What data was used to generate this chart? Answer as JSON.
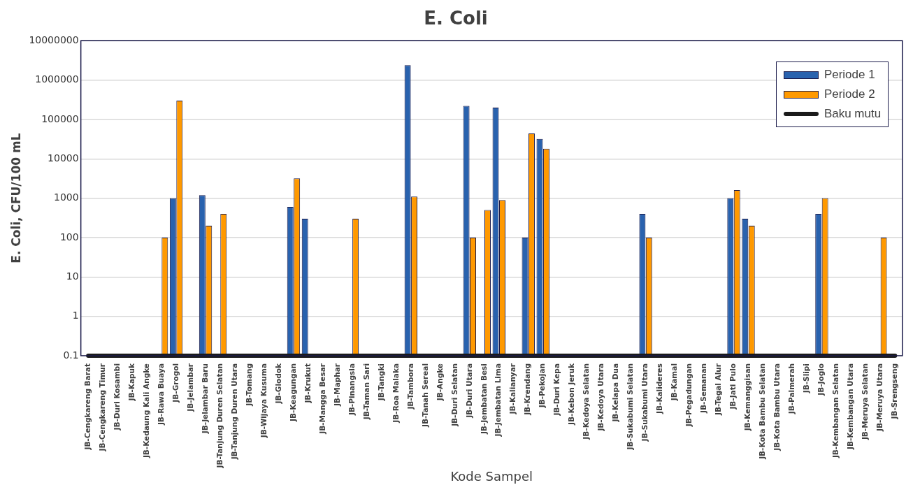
{
  "chart_data": {
    "type": "bar",
    "title": "E. Coli",
    "xlabel": "Kode Sampel",
    "ylabel": "E. Coli, CFU/100 mL",
    "categories": [
      "JB-Cengkareng Barat",
      "JB-Cengkareng Timur",
      "JB-Duri Kosambi",
      "JB-Kapuk",
      "JB-Kedaung Kali Angke",
      "JB-Rawa Buaya",
      "JB-Grogol",
      "JB-Jelambar",
      "JB-Jelambar Baru",
      "JB-Tanjung Duren Selatan",
      "JB-Tanjung Duren Utara",
      "JB-Tomang",
      "JB-Wijaya Kusuma",
      "JB-Glodok",
      "JB-Keagungan",
      "JB-Krukut",
      "JB-Mangga Besar",
      "JB-Maphar",
      "JB-Pinangsia",
      "JB-Taman Sari",
      "JB-Tangki",
      "JB-Roa Malaka",
      "JB-Tambora",
      "JB-Tanah Sereal",
      "JB-Angke",
      "JB-Duri Selatan",
      "JB-Duri Utara",
      "JB-Jembatan Besi",
      "JB-Jembatan Lima",
      "JB-Kalianyar",
      "JB-Krendang",
      "JB-Pekojan",
      "JB-Duri Kepa",
      "JB-Kebon Jeruk",
      "JB-Kedoya Selatan",
      "JB-Kedoya Utara",
      "JB-Kelapa Dua",
      "JB-Sukabumi Selatan",
      "JB-Sukabumi Utara",
      "JB-Kalideres",
      "JB-Kamal",
      "JB-Pegadungan",
      "JB-Semanan",
      "JB-Tegal Alur",
      "JB-Jati Pulo",
      "JB-Kemanggisan",
      "JB-Kota Bambu Selatan",
      "JB-Kota Bambu Utara",
      "JB-Palmerah",
      "JB-Slipi",
      "JB-Joglo",
      "JB-Kembangan Selatan",
      "JB-Kembangan Utara",
      "JB-Meruya Selatan",
      "JB-Meruya Utara",
      "JB-Srengseng"
    ],
    "series": [
      {
        "name": "Periode 1",
        "color": "#2962ae",
        "values": [
          null,
          null,
          null,
          null,
          null,
          null,
          1000,
          null,
          1200,
          null,
          null,
          null,
          null,
          null,
          600,
          300,
          null,
          null,
          null,
          null,
          null,
          null,
          2400000,
          null,
          null,
          null,
          220000,
          null,
          200000,
          null,
          100,
          32000,
          null,
          null,
          null,
          null,
          null,
          null,
          400,
          null,
          null,
          null,
          null,
          null,
          1000,
          300,
          null,
          null,
          null,
          null,
          400,
          null,
          null,
          null,
          null,
          null
        ]
      },
      {
        "name": "Periode 2",
        "color": "#ff9900",
        "values": [
          null,
          null,
          null,
          null,
          null,
          100,
          300000,
          null,
          200,
          400,
          null,
          null,
          null,
          null,
          3200,
          null,
          null,
          null,
          300,
          null,
          null,
          null,
          1100,
          null,
          null,
          null,
          100,
          500,
          900,
          null,
          44000,
          18000,
          null,
          null,
          null,
          null,
          null,
          null,
          100,
          null,
          null,
          null,
          null,
          null,
          1600,
          200,
          null,
          null,
          null,
          null,
          1000,
          null,
          null,
          null,
          100,
          null
        ]
      },
      {
        "name": "Baku mutu",
        "type": "line",
        "color": "#1a1a1a",
        "marker": "none",
        "values": [
          0.1,
          0.1,
          0.1,
          0.1,
          0.1,
          0.1,
          0.1,
          0.1,
          0.1,
          0.1,
          0.1,
          0.1,
          0.1,
          0.1,
          0.1,
          0.1,
          0.1,
          0.1,
          0.1,
          0.1,
          0.1,
          0.1,
          0.1,
          0.1,
          0.1,
          0.1,
          0.1,
          0.1,
          0.1,
          0.1,
          0.1,
          0.1,
          0.1,
          0.1,
          0.1,
          0.1,
          0.1,
          0.1,
          0.1,
          0.1,
          0.1,
          0.1,
          0.1,
          0.1,
          0.1,
          0.1,
          0.1,
          0.1,
          0.1,
          0.1,
          0.1,
          0.1,
          0.1,
          0.1,
          0.1,
          0.1
        ]
      }
    ],
    "log": true,
    "ylim": [
      0.1,
      10000000
    ],
    "yticks": [
      0.1,
      1,
      10,
      100,
      1000,
      10000,
      100000,
      1000000,
      10000000
    ],
    "grid": "y",
    "legend": "top right"
  }
}
